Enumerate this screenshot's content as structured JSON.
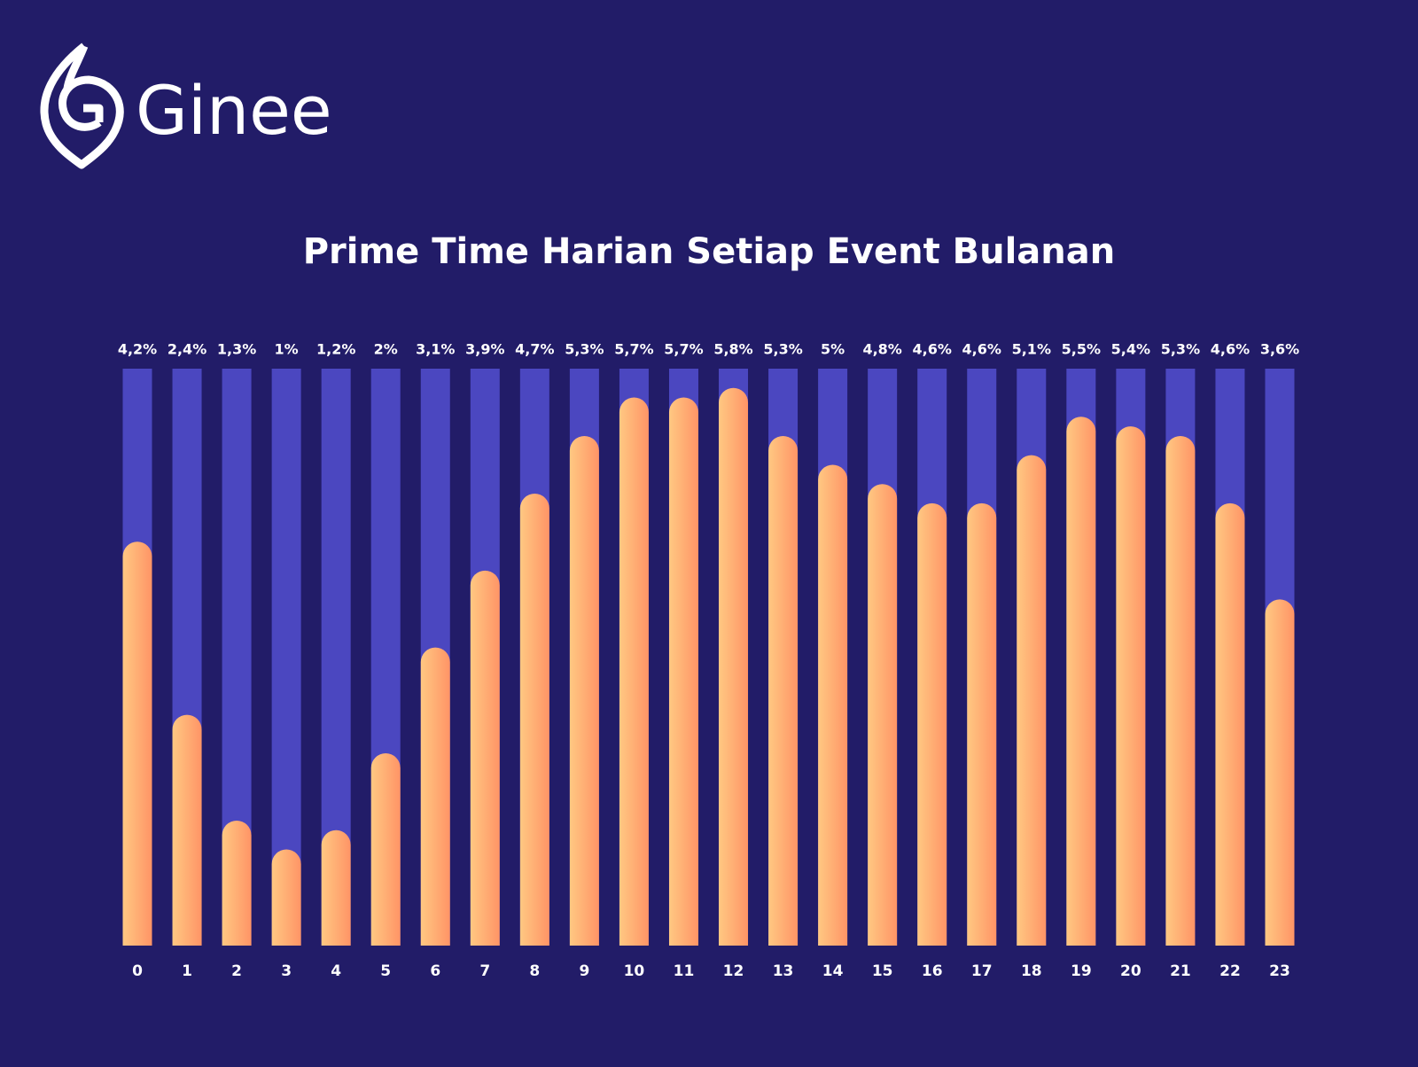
{
  "brand": "Ginee",
  "chart_data": {
    "type": "bar",
    "title": "Prime Time Harian Setiap Event Bulanan",
    "categories": [
      "0",
      "1",
      "2",
      "3",
      "4",
      "5",
      "6",
      "7",
      "8",
      "9",
      "10",
      "11",
      "12",
      "13",
      "14",
      "15",
      "16",
      "17",
      "18",
      "19",
      "20",
      "21",
      "22",
      "23"
    ],
    "values": [
      4.2,
      2.4,
      1.3,
      1,
      1.2,
      2,
      3.1,
      3.9,
      4.7,
      5.3,
      5.7,
      5.7,
      5.8,
      5.3,
      5,
      4.8,
      4.6,
      4.6,
      5.1,
      5.5,
      5.4,
      5.3,
      4.6,
      3.6
    ],
    "value_labels": [
      "4,2%",
      "2,4%",
      "1,3%",
      "1%",
      "1,2%",
      "2%",
      "3,1%",
      "3,9%",
      "4,7%",
      "5,3%",
      "5,7%",
      "5,7%",
      "5,8%",
      "5,3%",
      "5%",
      "4,8%",
      "4,6%",
      "4,6%",
      "5,1%",
      "5,5%",
      "5,4%",
      "5,3%",
      "4,6%",
      "3,6%"
    ],
    "ylim": [
      0,
      6
    ],
    "color": "#ffb070",
    "track_color": "#4b47c0"
  }
}
